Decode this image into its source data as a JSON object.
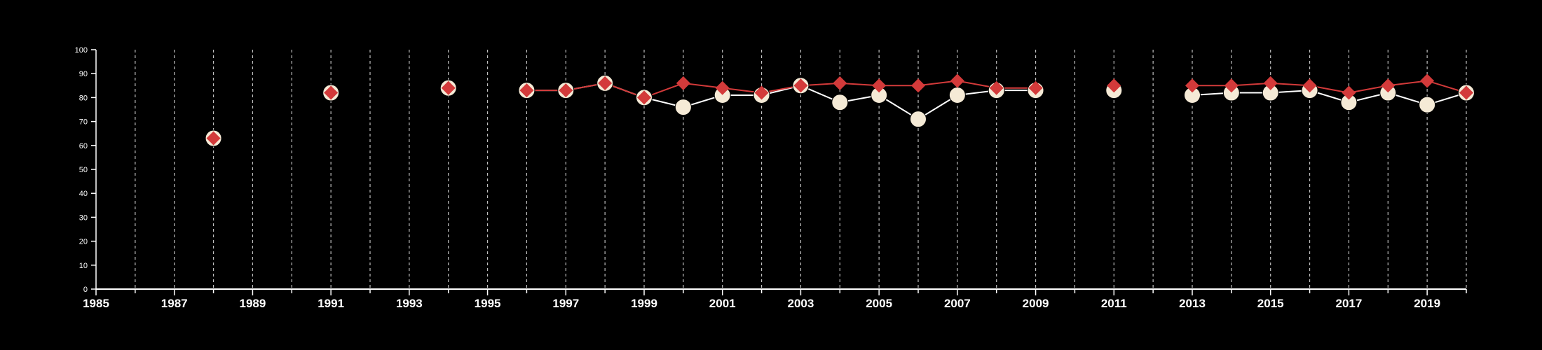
{
  "chart_data": {
    "type": "line",
    "title": "",
    "xlabel": "",
    "ylabel": "",
    "xlim": [
      1985,
      2020
    ],
    "ylim": [
      0,
      100
    ],
    "y_ticks": [
      0,
      10,
      20,
      30,
      40,
      50,
      60,
      70,
      80,
      90,
      100
    ],
    "x_ticks": [
      1985,
      1987,
      1989,
      1991,
      1993,
      1995,
      1997,
      1999,
      2001,
      2003,
      2005,
      2007,
      2009,
      2011,
      2013,
      2015,
      2017,
      2019
    ],
    "x_tick_labels": [
      "1985",
      "1987",
      "1989",
      "1991",
      "1993",
      "1995",
      "1997",
      "1999",
      "2001",
      "2003",
      "2005",
      "2007",
      "2009",
      "2011",
      "2013",
      "2015",
      "2017",
      "2019"
    ],
    "y_tick_labels": [
      "0",
      "10",
      "20",
      "30",
      "40",
      "50",
      "60",
      "70",
      "80",
      "90",
      "100"
    ],
    "grid": "vertical dashed lines at every year",
    "legend": "none",
    "series": [
      {
        "color": "#f5ead6",
        "marker": "circle",
        "points": [
          [
            1988,
            63
          ],
          [
            1991,
            82
          ],
          [
            1994,
            84
          ],
          [
            1996,
            83
          ],
          [
            1997,
            83
          ],
          [
            1998,
            86
          ],
          [
            1999,
            80
          ],
          [
            2000,
            76
          ],
          [
            2001,
            81
          ],
          [
            2002,
            81
          ],
          [
            2003,
            85
          ],
          [
            2004,
            78
          ],
          [
            2005,
            81
          ],
          [
            2006,
            71
          ],
          [
            2007,
            81
          ],
          [
            2008,
            83
          ],
          [
            2009,
            83
          ],
          [
            2011,
            83
          ],
          [
            2013,
            81
          ],
          [
            2014,
            82
          ],
          [
            2015,
            82
          ],
          [
            2016,
            83
          ],
          [
            2017,
            78
          ],
          [
            2018,
            82
          ],
          [
            2019,
            77
          ],
          [
            2020,
            82
          ]
        ]
      },
      {
        "color": "#d33a3a",
        "marker": "diamond",
        "points": [
          [
            1988,
            63
          ],
          [
            1991,
            82
          ],
          [
            1994,
            84
          ],
          [
            1996,
            83
          ],
          [
            1997,
            83
          ],
          [
            1998,
            86
          ],
          [
            1999,
            80
          ],
          [
            2000,
            86
          ],
          [
            2001,
            84
          ],
          [
            2002,
            82
          ],
          [
            2003,
            85
          ],
          [
            2004,
            86
          ],
          [
            2005,
            85
          ],
          [
            2006,
            85
          ],
          [
            2007,
            87
          ],
          [
            2008,
            84
          ],
          [
            2009,
            84
          ],
          [
            2011,
            85
          ],
          [
            2013,
            85
          ],
          [
            2014,
            85
          ],
          [
            2015,
            86
          ],
          [
            2016,
            85
          ],
          [
            2017,
            82
          ],
          [
            2018,
            85
          ],
          [
            2019,
            87
          ],
          [
            2020,
            82
          ]
        ]
      }
    ]
  }
}
